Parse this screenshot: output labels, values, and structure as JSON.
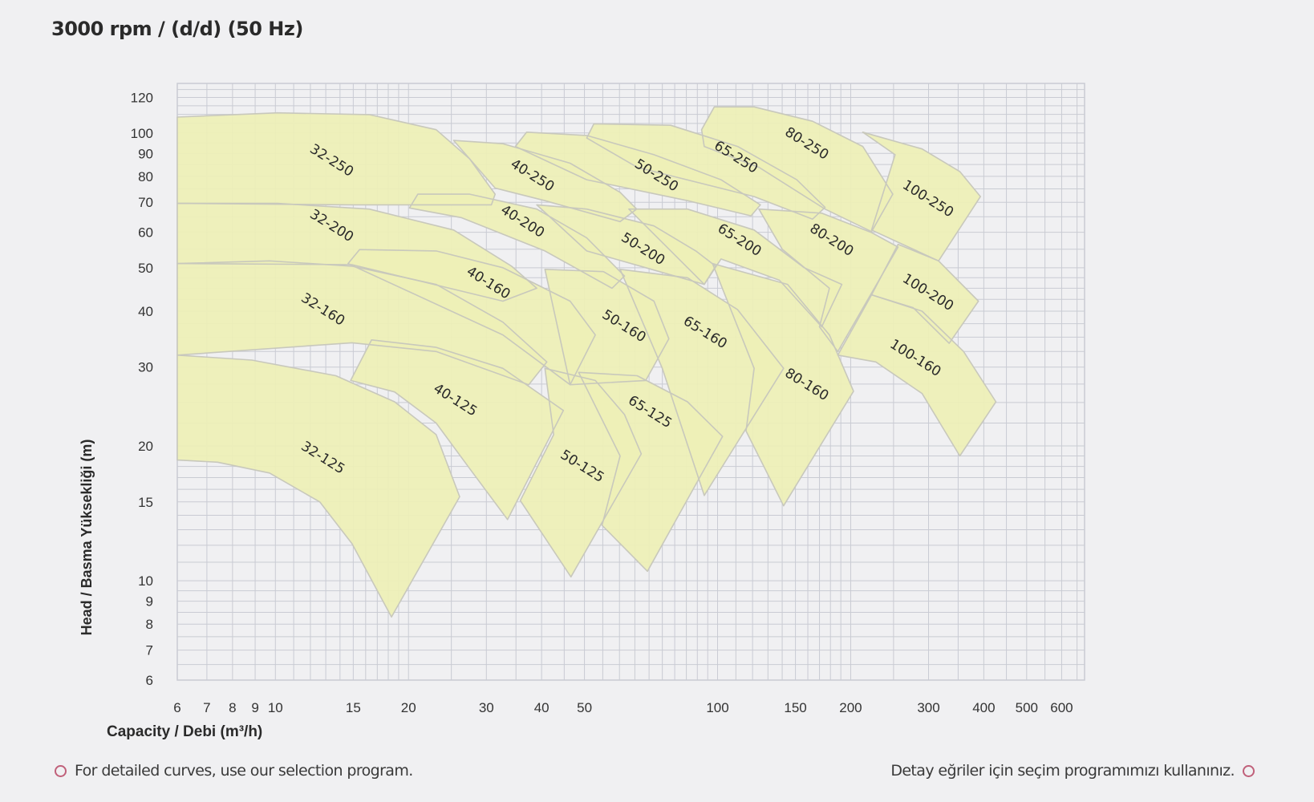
{
  "title": "3000 rpm / (d/d) (50 Hz)",
  "footer": {
    "left_text": "For detailed curves, use our selection program.",
    "right_text": "Detay eğriler için seçim programımızı kullanınız.",
    "bullet_icon": "circle-outline-icon",
    "bullet_color": "#c0607a"
  },
  "chart_data": {
    "type": "area",
    "xlabel": "Capacity / Debi (m³/h)",
    "ylabel": "Head / Basma Yüksekliği (m)",
    "x_scale": "log",
    "y_scale": "log",
    "xlim": [
      6,
      676
    ],
    "ylim": [
      6,
      129
    ],
    "grid": true,
    "x_ticks": [
      6,
      7,
      8,
      9,
      10,
      15,
      20,
      30,
      40,
      50,
      100,
      150,
      200,
      300,
      400,
      500,
      600
    ],
    "x_tick_labels": [
      "6",
      "7",
      "8",
      "9",
      "10",
      "15",
      "20",
      "30",
      "40",
      "50",
      "100",
      "150",
      "200",
      "300",
      "400",
      "500",
      "600"
    ],
    "y_ticks": [
      6,
      7,
      8,
      9,
      10,
      15,
      20,
      30,
      40,
      50,
      60,
      70,
      80,
      90,
      100,
      120
    ],
    "y_tick_labels": [
      "6",
      "7",
      "8",
      "9",
      "10",
      "15",
      "20",
      "30",
      "40",
      "50",
      "60",
      "70",
      "80",
      "90",
      "100",
      "120"
    ],
    "colors": {
      "fill": "#eef0b6",
      "outline": "#c8c8bc",
      "grid": "#c9cbd3",
      "background": "#f0f0f2"
    },
    "regions": [
      {
        "name": "100-250",
        "label_at": [
          299,
          71.2
        ],
        "points": [
          [
            213,
            100.4
          ],
          [
            290,
            92.1
          ],
          [
            353,
            82.0
          ],
          [
            393,
            72.1
          ],
          [
            316,
            51.8
          ],
          [
            223,
            60.7
          ],
          [
            252,
            89.4
          ]
        ]
      },
      {
        "name": "80-250",
        "label_at": [
          159,
          94.6
        ],
        "points": [
          [
            92,
            101.7
          ],
          [
            98.3,
            114.3
          ],
          [
            121,
            114.3
          ],
          [
            164,
            106.2
          ],
          [
            213,
            93.3
          ],
          [
            249,
            73.0
          ],
          [
            223,
            60.2
          ],
          [
            175,
            67.6
          ],
          [
            124,
            83.8
          ],
          [
            93.3,
            93.3
          ]
        ]
      },
      {
        "name": "65-250",
        "label_at": [
          110,
          88.2
        ],
        "points": [
          [
            50.6,
            97.4
          ],
          [
            52.5,
            104.8
          ],
          [
            78.3,
            104.0
          ],
          [
            111,
            93.3
          ],
          [
            151,
            78.6
          ],
          [
            175,
            68.2
          ],
          [
            164,
            64.2
          ],
          [
            121,
            72.1
          ],
          [
            65.8,
            83.8
          ]
        ]
      },
      {
        "name": "50-250",
        "label_at": [
          72.7,
          80.3
        ],
        "points": [
          [
            34.9,
            93.3
          ],
          [
            37.0,
            100.4
          ],
          [
            50.6,
            98.7
          ],
          [
            71.8,
            89.4
          ],
          [
            101.8,
            78.6
          ],
          [
            125,
            69.1
          ],
          [
            119,
            65.3
          ],
          [
            85.5,
            70.6
          ],
          [
            50.6,
            78.6
          ]
        ]
      },
      {
        "name": "40-250",
        "label_at": [
          38.1,
          80.3
        ],
        "points": [
          [
            25.3,
            96.2
          ],
          [
            32.7,
            94.6
          ],
          [
            46.4,
            85.6
          ],
          [
            60.2,
            73.7
          ],
          [
            65.6,
            67.6
          ],
          [
            60.2,
            63.4
          ],
          [
            40.7,
            70.6
          ],
          [
            31.4,
            75.3
          ]
        ]
      },
      {
        "name": "100-200",
        "label_at": [
          299,
          44.0
        ],
        "points": [
          [
            223,
            43.5
          ],
          [
            256,
            56.4
          ],
          [
            316,
            51.8
          ],
          [
            389,
            42.1
          ],
          [
            334,
            33.9
          ],
          [
            277,
            40.7
          ]
        ]
      },
      {
        "name": "80-200",
        "label_at": [
          181,
          57.6
        ],
        "points": [
          [
            124,
            67.6
          ],
          [
            172,
            66.2
          ],
          [
            223,
            59.9
          ],
          [
            256,
            55.6
          ],
          [
            187,
            32.5
          ],
          [
            170,
            36.9
          ],
          [
            179,
            45.0
          ],
          [
            140,
            55.0
          ]
        ]
      },
      {
        "name": "65-200",
        "label_at": [
          112,
          57.6
        ],
        "points": [
          [
            63.0,
            67.6
          ],
          [
            85.5,
            67.6
          ],
          [
            121,
            60.7
          ],
          [
            157,
            50.0
          ],
          [
            191,
            45.9
          ],
          [
            172,
            36.9
          ],
          [
            138,
            46.9
          ],
          [
            101.8,
            52.3
          ],
          [
            93.3,
            45.9
          ]
        ]
      },
      {
        "name": "50-200",
        "label_at": [
          67.8,
          55.0
        ],
        "points": [
          [
            39.0,
            69.1
          ],
          [
            50.6,
            67.6
          ],
          [
            71.8,
            62.0
          ],
          [
            89.3,
            54.5
          ],
          [
            99,
            50.4
          ],
          [
            93.3,
            45.9
          ],
          [
            68.8,
            50.0
          ],
          [
            50.6,
            54.5
          ]
        ]
      },
      {
        "name": "40-200",
        "label_at": [
          36.2,
          63.4
        ],
        "points": [
          [
            20.1,
            68.0
          ],
          [
            21.0,
            73.0
          ],
          [
            27.5,
            73.0
          ],
          [
            39.0,
            67.6
          ],
          [
            50.6,
            58.3
          ],
          [
            61.6,
            47.9
          ],
          [
            57.7,
            45.0
          ],
          [
            40.7,
            54.5
          ],
          [
            26.3,
            64.7
          ]
        ]
      },
      {
        "name": "32-250",
        "label_at": [
          13.4,
          86.7
        ],
        "points": [
          [
            6,
            108.5
          ],
          [
            10.1,
            110.9
          ],
          [
            16.3,
            109.9
          ],
          [
            23.1,
            101.7
          ],
          [
            27.5,
            87.5
          ],
          [
            31.4,
            73.0
          ],
          [
            30.8,
            69.1
          ],
          [
            14.9,
            69.1
          ],
          [
            6,
            69.6
          ]
        ]
      },
      {
        "name": "32-200",
        "label_at": [
          13.4,
          62.0
        ],
        "points": [
          [
            6,
            69.6
          ],
          [
            10.1,
            69.6
          ],
          [
            16.3,
            67.6
          ],
          [
            25.3,
            60.7
          ],
          [
            34.2,
            50.4
          ],
          [
            39.0,
            45.0
          ],
          [
            32.7,
            42.1
          ],
          [
            14.9,
            50.8
          ],
          [
            6,
            51.1
          ]
        ]
      },
      {
        "name": "100-160",
        "label_at": [
          280,
          31.4
        ],
        "points": [
          [
            223,
            43.5
          ],
          [
            290,
            40.0
          ],
          [
            360,
            32.5
          ],
          [
            426,
            25.1
          ],
          [
            353,
            19.0
          ],
          [
            290,
            26.2
          ],
          [
            228,
            30.8
          ],
          [
            187,
            31.9
          ]
        ]
      },
      {
        "name": "80-160",
        "label_at": [
          159,
          27.4
        ],
        "points": [
          [
            97.4,
            51.1
          ],
          [
            144,
            45.9
          ],
          [
            179,
            35.4
          ],
          [
            203,
            26.5
          ],
          [
            141,
            14.7
          ],
          [
            116,
            21.6
          ],
          [
            121,
            29.8
          ]
        ]
      },
      {
        "name": "65-160",
        "label_at": [
          93.7,
          35.8
        ],
        "points": [
          [
            60.2,
            49.6
          ],
          [
            85.5,
            47.5
          ],
          [
            111,
            40.3
          ],
          [
            141,
            29.8
          ],
          [
            93.3,
            15.5
          ],
          [
            75,
            29.8
          ]
        ]
      },
      {
        "name": "50-160",
        "label_at": [
          61.4,
          37.0
        ],
        "points": [
          [
            40.7,
            49.6
          ],
          [
            55.2,
            49.0
          ],
          [
            71.8,
            42.1
          ],
          [
            77.6,
            34.7
          ],
          [
            68.8,
            28.0
          ],
          [
            46.4,
            27.4
          ]
        ]
      },
      {
        "name": "40-160",
        "label_at": [
          30.3,
          46.2
        ],
        "points": [
          [
            14.6,
            51.1
          ],
          [
            15.5,
            54.9
          ],
          [
            23.1,
            54.5
          ],
          [
            32.7,
            50.0
          ],
          [
            46.4,
            42.1
          ],
          [
            52.9,
            35.4
          ],
          [
            46.4,
            27.4
          ],
          [
            32.7,
            35.4
          ]
        ]
      },
      {
        "name": "32-160",
        "label_at": [
          12.8,
          40.3
        ],
        "points": [
          [
            6,
            51.1
          ],
          [
            9.7,
            51.8
          ],
          [
            14.9,
            50.4
          ],
          [
            23.1,
            45.9
          ],
          [
            32.7,
            37.8
          ],
          [
            41.1,
            30.8
          ],
          [
            37.4,
            27.4
          ],
          [
            23.1,
            32.5
          ],
          [
            14.9,
            34.0
          ],
          [
            6,
            31.9
          ]
        ]
      },
      {
        "name": "65-125",
        "label_at": [
          70.3,
          23.8
        ],
        "points": [
          [
            48.5,
            29.2
          ],
          [
            65.8,
            28.7
          ],
          [
            85.5,
            25.1
          ],
          [
            102.6,
            21.0
          ],
          [
            69.4,
            10.5
          ],
          [
            54.8,
            13.3
          ],
          [
            60.2,
            19.0
          ]
        ]
      },
      {
        "name": "50-125",
        "label_at": [
          49.4,
          18.0
        ],
        "points": [
          [
            40.7,
            29.8
          ],
          [
            52.9,
            28.0
          ],
          [
            61.6,
            23.5
          ],
          [
            67.2,
            19.2
          ],
          [
            46.6,
            10.2
          ],
          [
            35.8,
            15.1
          ],
          [
            42.6,
            21.2
          ]
        ]
      },
      {
        "name": "40-125",
        "label_at": [
          25.5,
          25.3
        ],
        "points": [
          [
            14.8,
            28.0
          ],
          [
            16.5,
            34.5
          ],
          [
            23.1,
            33.2
          ],
          [
            32.7,
            29.8
          ],
          [
            44.8,
            24.0
          ],
          [
            33.5,
            13.7
          ],
          [
            27.5,
            17.8
          ],
          [
            23.1,
            22.5
          ],
          [
            18.6,
            26.4
          ]
        ]
      },
      {
        "name": "32-125",
        "label_at": [
          12.8,
          18.8
        ],
        "points": [
          [
            6,
            31.9
          ],
          [
            8.85,
            31.1
          ],
          [
            13.7,
            28.7
          ],
          [
            18.6,
            25.1
          ],
          [
            23.1,
            21.2
          ],
          [
            26.1,
            15.4
          ],
          [
            18.3,
            8.3
          ],
          [
            14.9,
            12.1
          ],
          [
            12.6,
            15.0
          ],
          [
            9.7,
            17.4
          ],
          [
            7.4,
            18.4
          ],
          [
            6,
            18.6
          ]
        ]
      }
    ]
  }
}
